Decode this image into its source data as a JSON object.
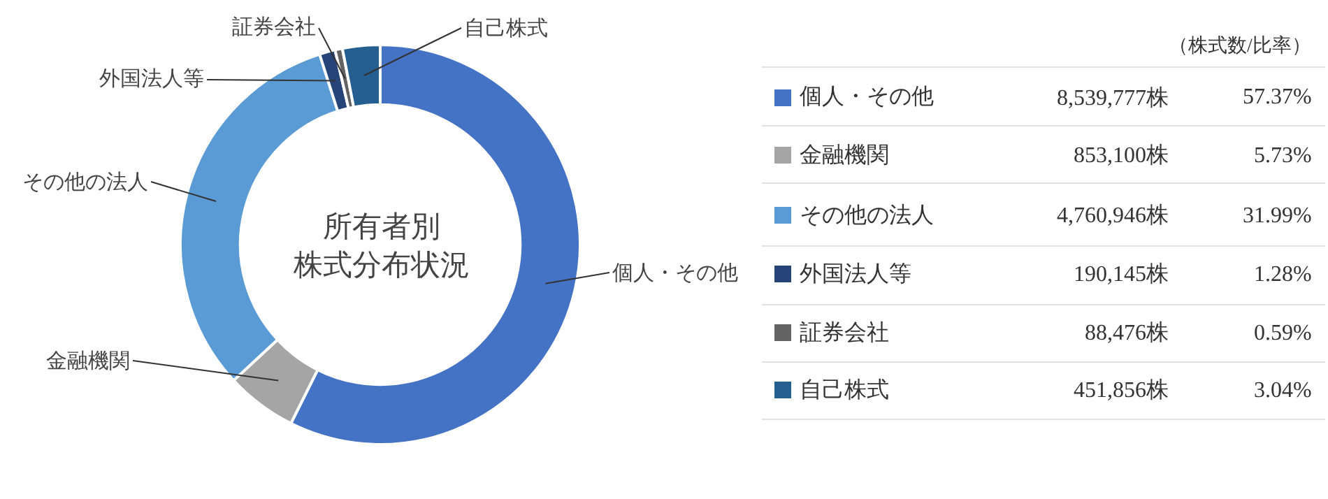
{
  "chart_data": {
    "type": "donut",
    "title": "所有者別株式分布状況",
    "legend": "right",
    "categories": [
      "個人・その他",
      "金融機関",
      "その他の法人",
      "外国法人等",
      "証券会社",
      "自己株式"
    ],
    "values": [
      8539777,
      853100,
      4760946,
      190145,
      88476,
      451856
    ],
    "colors": [
      "#4472c4",
      "#a5a5a5",
      "#5b9bd5",
      "#264478",
      "#636363",
      "#255e91"
    ],
    "value_labels": [
      "8,539,777株",
      "853,100株",
      "4,760,946株",
      "190,145株",
      "88,476株",
      "451,856株"
    ],
    "annotations": [
      "（株式数/比率）",
      "57.37%",
      "5.73%",
      "31.99%",
      "1.28%",
      "0.59%",
      "3.04%"
    ]
  }
}
